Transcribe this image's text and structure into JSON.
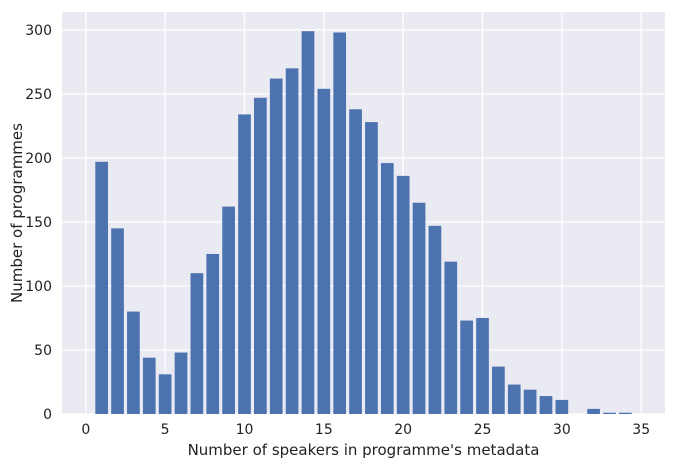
{
  "chart_data": {
    "type": "bar",
    "title": "",
    "xlabel": "Number of speakers in programme's metadata",
    "ylabel": "Number of programmes",
    "xlim": [
      -1.5,
      36.5
    ],
    "ylim": [
      0,
      314
    ],
    "xticks": [
      0,
      5,
      10,
      15,
      20,
      25,
      30,
      35
    ],
    "yticks": [
      0,
      50,
      100,
      150,
      200,
      250,
      300
    ],
    "grid": true,
    "legend": "none",
    "colors": {
      "bar": "#4C72B0",
      "background": "#EAEAF2",
      "grid": "#FFFFFF"
    },
    "x": [
      1,
      2,
      3,
      4,
      5,
      6,
      7,
      8,
      9,
      10,
      11,
      12,
      13,
      14,
      15,
      16,
      17,
      18,
      19,
      20,
      21,
      22,
      23,
      24,
      25,
      26,
      27,
      28,
      29,
      30,
      31,
      32,
      33,
      34
    ],
    "values": [
      197,
      145,
      80,
      44,
      31,
      48,
      110,
      125,
      162,
      234,
      247,
      262,
      270,
      299,
      254,
      298,
      238,
      228,
      196,
      186,
      165,
      147,
      119,
      73,
      75,
      37,
      23,
      19,
      14,
      11,
      0,
      4,
      1,
      1
    ]
  }
}
